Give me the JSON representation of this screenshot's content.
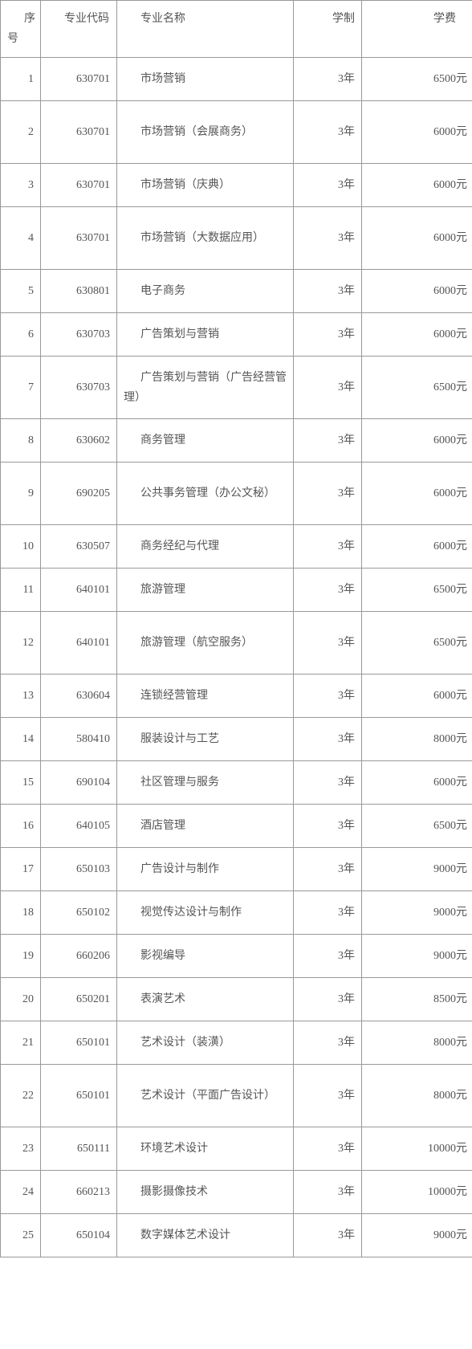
{
  "table": {
    "columns": {
      "seq": "序号",
      "code": "专业代码",
      "name": "专业名称",
      "dur": "学制",
      "fee": "学费"
    },
    "rows": [
      {
        "seq": "1",
        "code": "630701",
        "name": "市场营销",
        "dur": "3年",
        "fee": "6500元",
        "tall": false
      },
      {
        "seq": "2",
        "code": "630701",
        "name": "市场营销（会展商务）",
        "dur": "3年",
        "fee": "6000元",
        "tall": true
      },
      {
        "seq": "3",
        "code": "630701",
        "name": "市场营销（庆典）",
        "dur": "3年",
        "fee": "6000元",
        "tall": false
      },
      {
        "seq": "4",
        "code": "630701",
        "name": "市场营销（大数据应用）",
        "dur": "3年",
        "fee": "6000元",
        "tall": true
      },
      {
        "seq": "5",
        "code": "630801",
        "name": "电子商务",
        "dur": "3年",
        "fee": "6000元",
        "tall": false
      },
      {
        "seq": "6",
        "code": "630703",
        "name": "广告策划与营销",
        "dur": "3年",
        "fee": "6000元",
        "tall": false
      },
      {
        "seq": "7",
        "code": "630703",
        "name": "广告策划与营销（广告经营管理）",
        "dur": "3年",
        "fee": "6500元",
        "tall": true
      },
      {
        "seq": "8",
        "code": "630602",
        "name": "商务管理",
        "dur": "3年",
        "fee": "6000元",
        "tall": false
      },
      {
        "seq": "9",
        "code": "690205",
        "name": "公共事务管理（办公文秘）",
        "dur": "3年",
        "fee": "6000元",
        "tall": true
      },
      {
        "seq": "10",
        "code": "630507",
        "name": "商务经纪与代理",
        "dur": "3年",
        "fee": "6000元",
        "tall": false
      },
      {
        "seq": "11",
        "code": "640101",
        "name": "旅游管理",
        "dur": "3年",
        "fee": "6500元",
        "tall": false
      },
      {
        "seq": "12",
        "code": "640101",
        "name": "旅游管理（航空服务）",
        "dur": "3年",
        "fee": "6500元",
        "tall": true
      },
      {
        "seq": "13",
        "code": "630604",
        "name": "连锁经营管理",
        "dur": "3年",
        "fee": "6000元",
        "tall": false
      },
      {
        "seq": "14",
        "code": "580410",
        "name": "服装设计与工艺",
        "dur": "3年",
        "fee": "8000元",
        "tall": false
      },
      {
        "seq": "15",
        "code": "690104",
        "name": "社区管理与服务",
        "dur": "3年",
        "fee": "6000元",
        "tall": false
      },
      {
        "seq": "16",
        "code": "640105",
        "name": "酒店管理",
        "dur": "3年",
        "fee": "6500元",
        "tall": false
      },
      {
        "seq": "17",
        "code": "650103",
        "name": "广告设计与制作",
        "dur": "3年",
        "fee": "9000元",
        "tall": false
      },
      {
        "seq": "18",
        "code": "650102",
        "name": "视觉传达设计与制作",
        "dur": "3年",
        "fee": "9000元",
        "tall": false
      },
      {
        "seq": "19",
        "code": "660206",
        "name": "影视编导",
        "dur": "3年",
        "fee": "9000元",
        "tall": false
      },
      {
        "seq": "20",
        "code": "650201",
        "name": "表演艺术",
        "dur": "3年",
        "fee": "8500元",
        "tall": false
      },
      {
        "seq": "21",
        "code": "650101",
        "name": "艺术设计（装潢）",
        "dur": "3年",
        "fee": "8000元",
        "tall": false
      },
      {
        "seq": "22",
        "code": "650101",
        "name": "艺术设计（平面广告设计）",
        "dur": "3年",
        "fee": "8000元",
        "tall": true
      },
      {
        "seq": "23",
        "code": "650111",
        "name": "环境艺术设计",
        "dur": "3年",
        "fee": "10000元",
        "tall": false
      },
      {
        "seq": "24",
        "code": "660213",
        "name": "摄影摄像技术",
        "dur": "3年",
        "fee": "10000元",
        "tall": false
      },
      {
        "seq": "25",
        "code": "650104",
        "name": "数字媒体艺术设计",
        "dur": "3年",
        "fee": "9000元",
        "tall": false
      }
    ]
  }
}
